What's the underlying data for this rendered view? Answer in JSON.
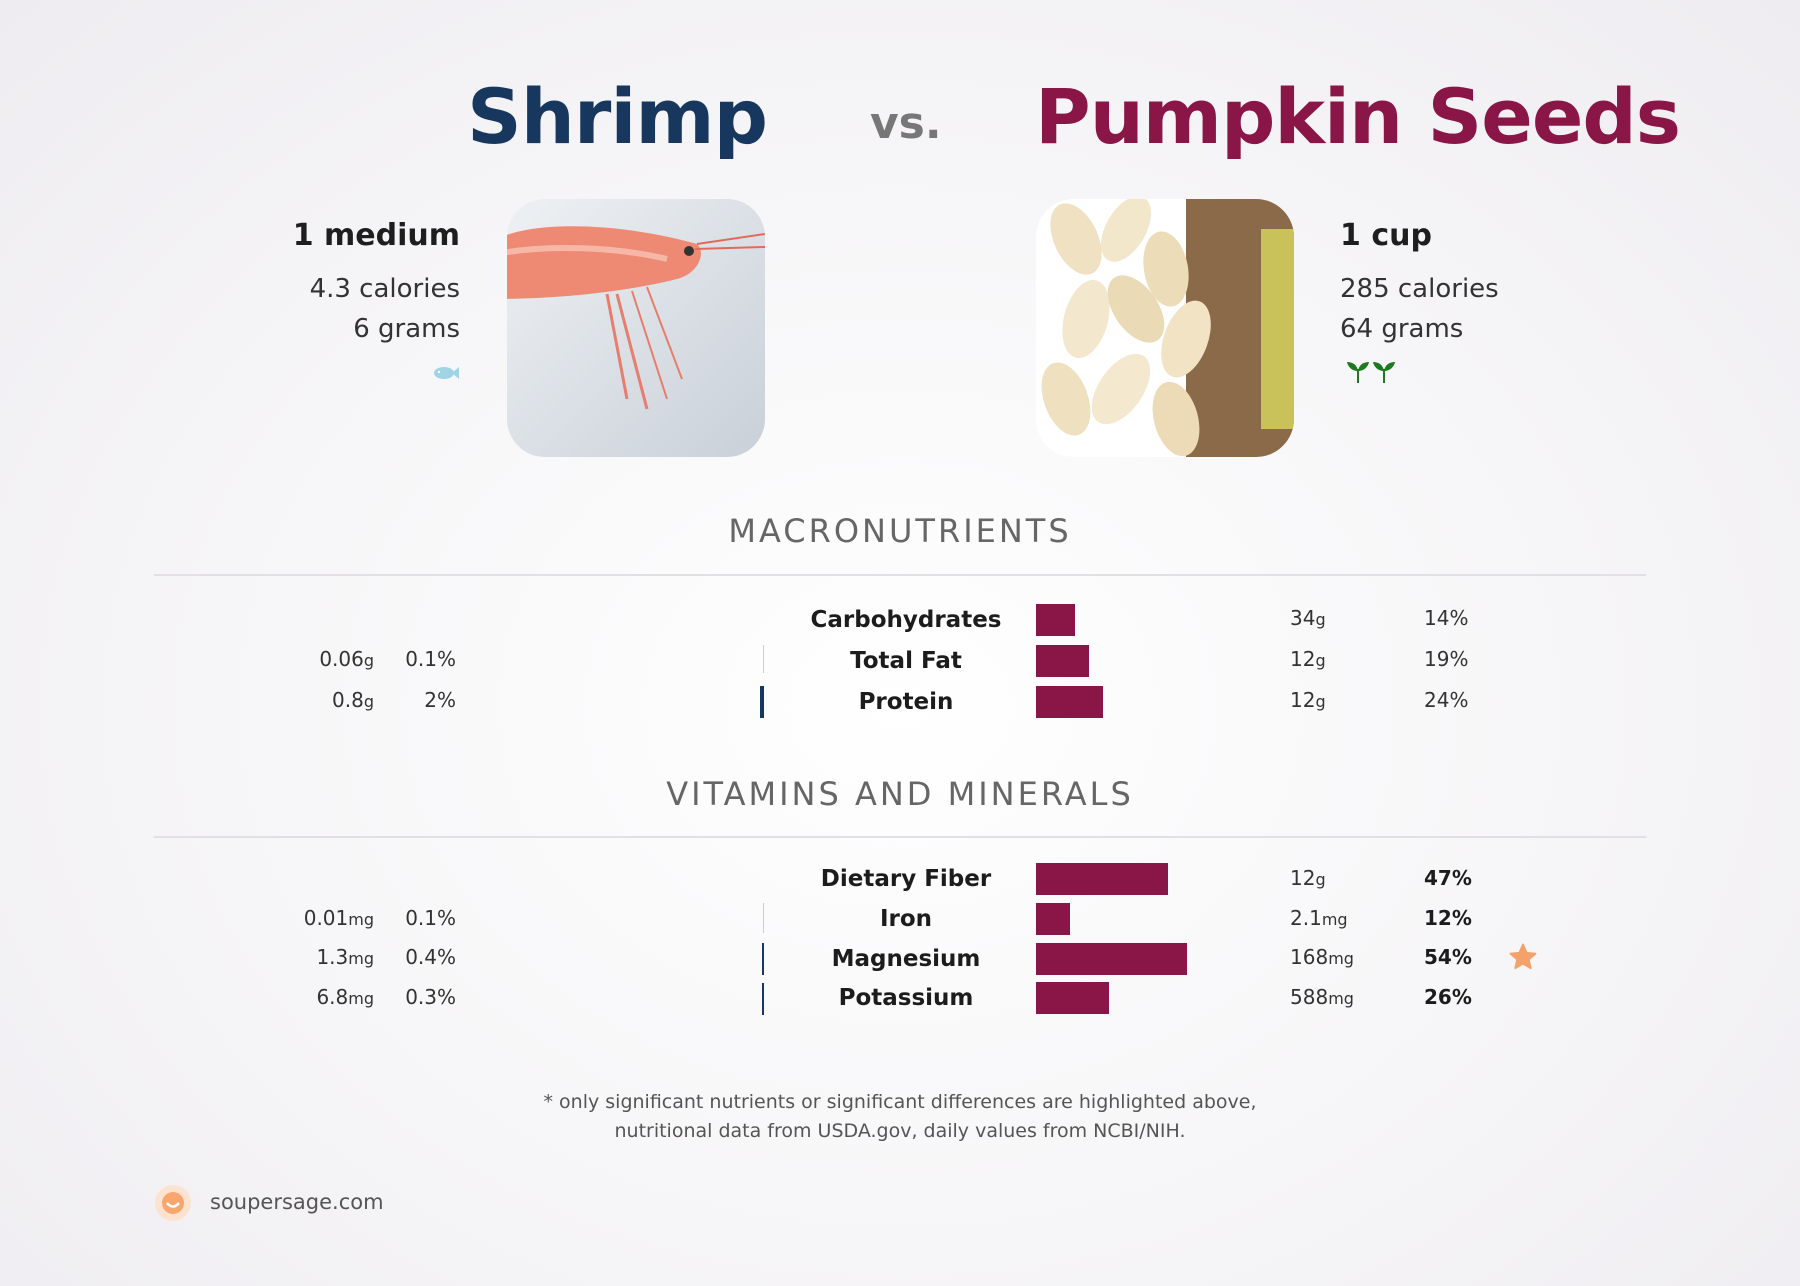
{
  "header": {
    "left_title": "Shrimp",
    "vs": "vs.",
    "right_title": "Pumpkin Seeds"
  },
  "left_food": {
    "serving": "1 medium",
    "calories": "4.3 calories",
    "weight": "6 grams",
    "icon": "fish-icon"
  },
  "right_food": {
    "serving": "1 cup",
    "calories": "285 calories",
    "weight": "64 grams",
    "icon": "sprout-icon"
  },
  "sections": {
    "macros": "MACRONUTRIENTS",
    "vitamins": "VITAMINS AND MINERALS"
  },
  "macros": [
    {
      "name": "Carbohydrates",
      "left_val": "",
      "left_unit": "",
      "left_pct": "",
      "right_val": "34",
      "right_unit": "g",
      "right_pct": "14%",
      "right_frac": 0.14
    },
    {
      "name": "Total Fat",
      "left_val": "0.06",
      "left_unit": "g",
      "left_pct": "0.1%",
      "right_val": "12",
      "right_unit": "g",
      "right_pct": "19%",
      "right_frac": 0.19
    },
    {
      "name": "Protein",
      "left_val": "0.8",
      "left_unit": "g",
      "left_pct": "2%",
      "right_val": "12",
      "right_unit": "g",
      "right_pct": "24%",
      "right_frac": 0.24
    }
  ],
  "vitamins": [
    {
      "name": "Dietary Fiber",
      "left_val": "",
      "left_unit": "",
      "left_pct": "",
      "right_val": "12",
      "right_unit": "g",
      "right_pct": "47%",
      "right_frac": 0.47
    },
    {
      "name": "Iron",
      "left_val": "0.01",
      "left_unit": "mg",
      "left_pct": "0.1%",
      "right_val": "2.1",
      "right_unit": "mg",
      "right_pct": "12%",
      "right_frac": 0.12
    },
    {
      "name": "Magnesium",
      "left_val": "1.3",
      "left_unit": "mg",
      "left_pct": "0.4%",
      "right_val": "168",
      "right_unit": "mg",
      "right_pct": "54%",
      "right_frac": 0.54,
      "highlight": "star-icon"
    },
    {
      "name": "Potassium",
      "left_val": "6.8",
      "left_unit": "mg",
      "left_pct": "0.3%",
      "right_val": "588",
      "right_unit": "mg",
      "right_pct": "26%",
      "right_frac": 0.26
    }
  ],
  "footnote": {
    "line1": "* only significant nutrients or significant differences are highlighted above,",
    "line2": "nutritional data from USDA.gov, daily values from NCBI/NIH."
  },
  "brand": "soupersage.com",
  "colors": {
    "left_accent": "#17375e",
    "right_accent": "#8a1648",
    "star": "#f4a26b"
  }
}
